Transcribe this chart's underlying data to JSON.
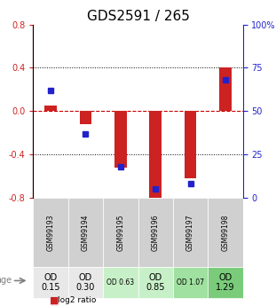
{
  "title": "GDS2591 / 265",
  "samples": [
    "GSM99193",
    "GSM99194",
    "GSM99195",
    "GSM99196",
    "GSM99197",
    "GSM99198"
  ],
  "log2_ratio": [
    0.05,
    -0.12,
    -0.52,
    -0.82,
    -0.62,
    0.4
  ],
  "percentile_rank": [
    62,
    37,
    18,
    5,
    8,
    68
  ],
  "age_labels": [
    "OD\n0.15",
    "OD\n0.30",
    "OD 0.63",
    "OD\n0.85",
    "OD 1.07",
    "OD\n1.29"
  ],
  "age_fontsize_large": [
    true,
    true,
    false,
    true,
    false,
    true
  ],
  "age_colors": [
    "#e8e8e8",
    "#e8e8e8",
    "#c8f0c8",
    "#c8f0c8",
    "#a0e0a0",
    "#7acc7a"
  ],
  "sample_bg": "#d0d0d0",
  "ylim": [
    -0.8,
    0.8
  ],
  "yticks_left": [
    -0.8,
    -0.4,
    0.0,
    0.4,
    0.8
  ],
  "yticks_right": [
    0,
    25,
    50,
    75,
    100
  ],
  "bar_color": "#cc2222",
  "dot_color": "#2222cc",
  "zero_line_color": "#cc0000",
  "grid_color": "#000000",
  "title_fontsize": 11
}
